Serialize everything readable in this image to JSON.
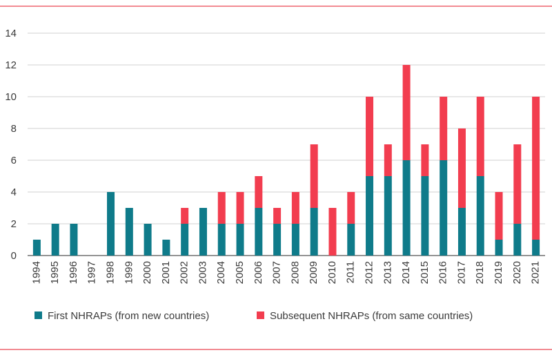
{
  "chart_data": {
    "type": "bar",
    "stacked": true,
    "categories": [
      "1994",
      "1995",
      "1996",
      "1997",
      "1998",
      "1999",
      "2000",
      "2001",
      "2002",
      "2003",
      "2004",
      "2005",
      "2006",
      "2007",
      "2008",
      "2009",
      "2010",
      "2011",
      "2012",
      "2013",
      "2014",
      "2015",
      "2016",
      "2017",
      "2018",
      "2019",
      "2020",
      "2021"
    ],
    "series": [
      {
        "name": "First NHRAPs (from new countries)",
        "color": "#0f7b8a",
        "values": [
          1,
          2,
          2,
          0,
          4,
          3,
          2,
          1,
          2,
          3,
          2,
          2,
          3,
          2,
          2,
          3,
          0,
          2,
          5,
          5,
          6,
          5,
          6,
          3,
          5,
          1,
          2,
          1
        ]
      },
      {
        "name": "Subsequent NHRAPs (from same countries)",
        "color": "#f23d4f",
        "values": [
          0,
          0,
          0,
          0,
          0,
          0,
          0,
          0,
          1,
          0,
          2,
          2,
          2,
          1,
          2,
          4,
          3,
          2,
          5,
          2,
          6,
          2,
          4,
          5,
          5,
          3,
          5,
          9
        ]
      }
    ],
    "ylim": [
      0,
      14
    ],
    "yticks": [
      0,
      2,
      4,
      6,
      8,
      10,
      12,
      14
    ],
    "grid": true,
    "legend_position": "bottom-left"
  }
}
